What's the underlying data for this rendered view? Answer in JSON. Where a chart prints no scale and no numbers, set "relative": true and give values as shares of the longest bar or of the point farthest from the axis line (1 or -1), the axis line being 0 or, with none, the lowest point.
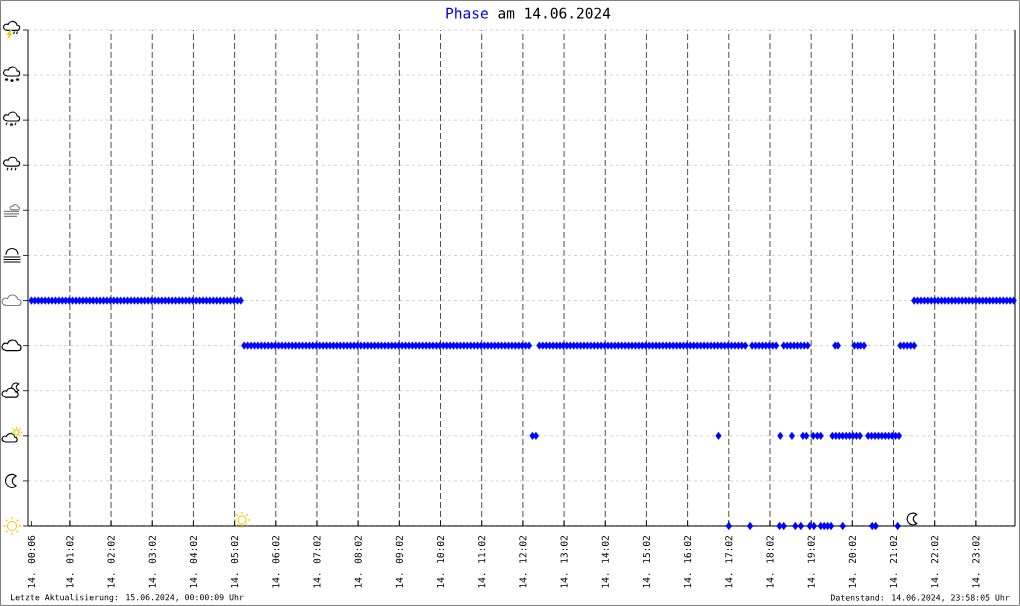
{
  "chart_data": {
    "type": "scatter",
    "title": "am 14.06.2024",
    "annotations": [
      "Letzte Aktualisierung: 15.06.2024, 00:00:09 Uhr",
      "Datenstand: 14.06.2024, 23:58:05 Uhr"
    ],
    "relative": true,
    "grid": true,
    "marker": "diamond",
    "xlim": [
      "2024-06-14T00:01",
      "2024-06-14T23:59"
    ],
    "xticks": [
      {
        "value": "2024-06-14T00:06",
        "label": "14. 00:06"
      },
      {
        "value": "2024-06-14T01:02",
        "label": "14. 01:02"
      },
      {
        "value": "2024-06-14T02:02",
        "label": "14. 02:02"
      },
      {
        "value": "2024-06-14T03:02",
        "label": "14. 03:02"
      },
      {
        "value": "2024-06-14T04:02",
        "label": "14. 04:02"
      },
      {
        "value": "2024-06-14T05:02",
        "label": "14. 05:02"
      },
      {
        "value": "2024-06-14T06:02",
        "label": "14. 06:02"
      },
      {
        "value": "2024-06-14T07:02",
        "label": "14. 07:02"
      },
      {
        "value": "2024-06-14T08:02",
        "label": "14. 08:02"
      },
      {
        "value": "2024-06-14T09:02",
        "label": "14. 09:02"
      },
      {
        "value": "2024-06-14T10:02",
        "label": "14. 10:02"
      },
      {
        "value": "2024-06-14T11:02",
        "label": "14. 11:02"
      },
      {
        "value": "2024-06-14T12:02",
        "label": "14. 12:02"
      },
      {
        "value": "2024-06-14T13:02",
        "label": "14. 13:02"
      },
      {
        "value": "2024-06-14T14:02",
        "label": "14. 14:02"
      },
      {
        "value": "2024-06-14T15:02",
        "label": "14. 15:02"
      },
      {
        "value": "2024-06-14T16:02",
        "label": "14. 16:02"
      },
      {
        "value": "2024-06-14T17:02",
        "label": "14. 17:02"
      },
      {
        "value": "2024-06-14T18:02",
        "label": "14. 18:02"
      },
      {
        "value": "2024-06-14T19:02",
        "label": "14. 19:02"
      },
      {
        "value": "2024-06-14T20:02",
        "label": "14. 20:02"
      },
      {
        "value": "2024-06-14T21:02",
        "label": "14. 21:02"
      },
      {
        "value": "2024-06-14T22:02",
        "label": "14. 22:02"
      },
      {
        "value": "2024-06-14T23:02",
        "label": "14. 23:02"
      }
    ],
    "series": [
      {
        "name": "Phase",
        "color": "#0000ff",
        "x": [
          "2024-06-14T00:06",
          "2024-06-14T00:11",
          "2024-06-14T00:16",
          "2024-06-14T00:21",
          "2024-06-14T00:26",
          "2024-06-14T00:31",
          "2024-06-14T00:36",
          "2024-06-14T00:41",
          "2024-06-14T00:46",
          "2024-06-14T00:51",
          "2024-06-14T00:56",
          "2024-06-14T01:01",
          "2024-06-14T01:06",
          "2024-06-14T01:11",
          "2024-06-14T01:16",
          "2024-06-14T01:21",
          "2024-06-14T01:26",
          "2024-06-14T01:31",
          "2024-06-14T01:36",
          "2024-06-14T01:41",
          "2024-06-14T01:46",
          "2024-06-14T01:51",
          "2024-06-14T01:56",
          "2024-06-14T02:01",
          "2024-06-14T02:06",
          "2024-06-14T02:11",
          "2024-06-14T02:16",
          "2024-06-14T02:21",
          "2024-06-14T02:26",
          "2024-06-14T02:31",
          "2024-06-14T02:36",
          "2024-06-14T02:41",
          "2024-06-14T02:46",
          "2024-06-14T02:51",
          "2024-06-14T02:56",
          "2024-06-14T03:01",
          "2024-06-14T03:06",
          "2024-06-14T03:11",
          "2024-06-14T03:16",
          "2024-06-14T03:21",
          "2024-06-14T03:26",
          "2024-06-14T03:31",
          "2024-06-14T03:36",
          "2024-06-14T03:41",
          "2024-06-14T03:46",
          "2024-06-14T03:51",
          "2024-06-14T03:56",
          "2024-06-14T04:01",
          "2024-06-14T04:06",
          "2024-06-14T04:11",
          "2024-06-14T04:16",
          "2024-06-14T04:21",
          "2024-06-14T04:26",
          "2024-06-14T04:31",
          "2024-06-14T04:36",
          "2024-06-14T04:41",
          "2024-06-14T04:46",
          "2024-06-14T04:51",
          "2024-06-14T04:56",
          "2024-06-14T05:01",
          "2024-06-14T05:06",
          "2024-06-14T05:11",
          "2024-06-14T05:16",
          "2024-06-14T05:21",
          "2024-06-14T05:26",
          "2024-06-14T05:31",
          "2024-06-14T05:36",
          "2024-06-14T05:41",
          "2024-06-14T05:46",
          "2024-06-14T05:51",
          "2024-06-14T05:56",
          "2024-06-14T06:01",
          "2024-06-14T06:06",
          "2024-06-14T06:11",
          "2024-06-14T06:16",
          "2024-06-14T06:21",
          "2024-06-14T06:26",
          "2024-06-14T06:31",
          "2024-06-14T06:36",
          "2024-06-14T06:41",
          "2024-06-14T06:46",
          "2024-06-14T06:51",
          "2024-06-14T06:56",
          "2024-06-14T07:01",
          "2024-06-14T07:06",
          "2024-06-14T07:11",
          "2024-06-14T07:16",
          "2024-06-14T07:21",
          "2024-06-14T07:26",
          "2024-06-14T07:31",
          "2024-06-14T07:36",
          "2024-06-14T07:41",
          "2024-06-14T07:46",
          "2024-06-14T07:51",
          "2024-06-14T07:56",
          "2024-06-14T08:01",
          "2024-06-14T08:06",
          "2024-06-14T08:11",
          "2024-06-14T08:16",
          "2024-06-14T08:21",
          "2024-06-14T08:26",
          "2024-06-14T08:31",
          "2024-06-14T08:36",
          "2024-06-14T08:41",
          "2024-06-14T08:46",
          "2024-06-14T08:51",
          "2024-06-14T08:56",
          "2024-06-14T09:01",
          "2024-06-14T09:06",
          "2024-06-14T09:11",
          "2024-06-14T09:16",
          "2024-06-14T09:21",
          "2024-06-14T09:26",
          "2024-06-14T09:31",
          "2024-06-14T09:36",
          "2024-06-14T09:41",
          "2024-06-14T09:46",
          "2024-06-14T09:51",
          "2024-06-14T09:56",
          "2024-06-14T10:01",
          "2024-06-14T10:06",
          "2024-06-14T10:11",
          "2024-06-14T10:16",
          "2024-06-14T10:21",
          "2024-06-14T10:26",
          "2024-06-14T10:31",
          "2024-06-14T10:36",
          "2024-06-14T10:41",
          "2024-06-14T10:46",
          "2024-06-14T10:51",
          "2024-06-14T10:56",
          "2024-06-14T11:01",
          "2024-06-14T11:06",
          "2024-06-14T11:11",
          "2024-06-14T11:16",
          "2024-06-14T11:21",
          "2024-06-14T11:26",
          "2024-06-14T11:31",
          "2024-06-14T11:36",
          "2024-06-14T11:41",
          "2024-06-14T11:46",
          "2024-06-14T11:51",
          "2024-06-14T11:56",
          "2024-06-14T12:01",
          "2024-06-14T12:06",
          "2024-06-14T12:11",
          "2024-06-14T12:26",
          "2024-06-14T12:31",
          "2024-06-14T12:36",
          "2024-06-14T12:41",
          "2024-06-14T12:46",
          "2024-06-14T12:51",
          "2024-06-14T12:56",
          "2024-06-14T13:01",
          "2024-06-14T13:06",
          "2024-06-14T13:11",
          "2024-06-14T13:16",
          "2024-06-14T13:21",
          "2024-06-14T13:26",
          "2024-06-14T13:31",
          "2024-06-14T13:36",
          "2024-06-14T13:41",
          "2024-06-14T13:46",
          "2024-06-14T13:51",
          "2024-06-14T13:56",
          "2024-06-14T14:01",
          "2024-06-14T14:06",
          "2024-06-14T14:11",
          "2024-06-14T14:16",
          "2024-06-14T14:21",
          "2024-06-14T14:26",
          "2024-06-14T14:31",
          "2024-06-14T14:36",
          "2024-06-14T14:41",
          "2024-06-14T14:46",
          "2024-06-14T14:51",
          "2024-06-14T14:56",
          "2024-06-14T15:01",
          "2024-06-14T15:06",
          "2024-06-14T15:11",
          "2024-06-14T15:16",
          "2024-06-14T15:21",
          "2024-06-14T15:26",
          "2024-06-14T15:31",
          "2024-06-14T15:36",
          "2024-06-14T15:41",
          "2024-06-14T15:46",
          "2024-06-14T15:51",
          "2024-06-14T15:56",
          "2024-06-14T16:01",
          "2024-06-14T16:06",
          "2024-06-14T16:11",
          "2024-06-14T16:16",
          "2024-06-14T16:21",
          "2024-06-14T16:26",
          "2024-06-14T16:31",
          "2024-06-14T16:36",
          "2024-06-14T16:41",
          "2024-06-14T16:46",
          "2024-06-14T16:51",
          "2024-06-14T16:56",
          "2024-06-14T17:01",
          "2024-06-14T17:06",
          "2024-06-14T17:11",
          "2024-06-14T17:16",
          "2024-06-14T17:21",
          "2024-06-14T17:26",
          "2024-06-14T17:36",
          "2024-06-14T17:41",
          "2024-06-14T17:46",
          "2024-06-14T17:51",
          "2024-06-14T17:56",
          "2024-06-14T18:01",
          "2024-06-14T18:06",
          "2024-06-14T18:11",
          "2024-06-14T18:22",
          "2024-06-14T18:27",
          "2024-06-14T18:32",
          "2024-06-14T18:37",
          "2024-06-14T18:42",
          "2024-06-14T18:47",
          "2024-06-14T18:52",
          "2024-06-14T18:57",
          "2024-06-14T19:37",
          "2024-06-14T19:41",
          "2024-06-14T20:05",
          "2024-06-14T20:10",
          "2024-06-14T20:14",
          "2024-06-14T20:19",
          "2024-06-14T21:12",
          "2024-06-14T21:17",
          "2024-06-14T21:22",
          "2024-06-14T21:27",
          "2024-06-14T21:32",
          "2024-06-14T21:32",
          "2024-06-14T21:37",
          "2024-06-14T21:42",
          "2024-06-14T21:47",
          "2024-06-14T21:52",
          "2024-06-14T21:57",
          "2024-06-14T22:02",
          "2024-06-14T22:07",
          "2024-06-14T22:12",
          "2024-06-14T22:17",
          "2024-06-14T22:22",
          "2024-06-14T22:27",
          "2024-06-14T22:32",
          "2024-06-14T22:37",
          "2024-06-14T22:42",
          "2024-06-14T22:47",
          "2024-06-14T22:52",
          "2024-06-14T22:57",
          "2024-06-14T23:02",
          "2024-06-14T23:07",
          "2024-06-14T23:12",
          "2024-06-14T23:17",
          "2024-06-14T23:22",
          "2024-06-14T23:27",
          "2024-06-14T23:32",
          "2024-06-14T23:37",
          "2024-06-14T23:42",
          "2024-06-14T23:47",
          "2024-06-14T23:52",
          "2024-06-14T23:57",
          "2024-06-14T12:16",
          "2024-06-14T12:21",
          "2024-06-14T16:47",
          "2024-06-14T18:17",
          "2024-06-14T18:34",
          "2024-06-14T18:50",
          "2024-06-14T18:55",
          "2024-06-14T19:05",
          "2024-06-14T19:11",
          "2024-06-14T19:16",
          "2024-06-14T19:33",
          "2024-06-14T19:38",
          "2024-06-14T19:43",
          "2024-06-14T19:48",
          "2024-06-14T19:53",
          "2024-06-14T19:58",
          "2024-06-14T20:03",
          "2024-06-14T20:08",
          "2024-06-14T20:13",
          "2024-06-14T20:25",
          "2024-06-14T20:30",
          "2024-06-14T20:35",
          "2024-06-14T20:40",
          "2024-06-14T20:45",
          "2024-06-14T20:50",
          "2024-06-14T20:55",
          "2024-06-14T21:00",
          "2024-06-14T21:05",
          "2024-06-14T21:10",
          "2024-06-14T17:02",
          "2024-06-14T17:33",
          "2024-06-14T18:16",
          "2024-06-14T18:22",
          "2024-06-14T18:39",
          "2024-06-14T18:47",
          "2024-06-14T19:00",
          "2024-06-14T19:06",
          "2024-06-14T19:16",
          "2024-06-14T19:21",
          "2024-06-14T19:26",
          "2024-06-14T19:31",
          "2024-06-14T19:48",
          "2024-06-14T20:31",
          "2024-06-14T20:36",
          "2024-06-14T21:08"
        ],
        "values": [
          1,
          1,
          1,
          1,
          1,
          1,
          1,
          1,
          1,
          1,
          1,
          1,
          1,
          1,
          1,
          1,
          1,
          1,
          1,
          1,
          1,
          1,
          1,
          1,
          1,
          1,
          1,
          1,
          1,
          1,
          1,
          1,
          1,
          1,
          1,
          1,
          1,
          1,
          1,
          1,
          1,
          1,
          1,
          1,
          1,
          1,
          1,
          1,
          1,
          1,
          1,
          1,
          1,
          1,
          1,
          1,
          1,
          1,
          1,
          1,
          1,
          1,
          0.8,
          0.8,
          0.8,
          0.8,
          0.8,
          0.8,
          0.8,
          0.8,
          0.8,
          0.8,
          0.8,
          0.8,
          0.8,
          0.8,
          0.8,
          0.8,
          0.8,
          0.8,
          0.8,
          0.8,
          0.8,
          0.8,
          0.8,
          0.8,
          0.8,
          0.8,
          0.8,
          0.8,
          0.8,
          0.8,
          0.8,
          0.8,
          0.8,
          0.8,
          0.8,
          0.8,
          0.8,
          0.8,
          0.8,
          0.8,
          0.8,
          0.8,
          0.8,
          0.8,
          0.8,
          0.8,
          0.8,
          0.8,
          0.8,
          0.8,
          0.8,
          0.8,
          0.8,
          0.8,
          0.8,
          0.8,
          0.8,
          0.8,
          0.8,
          0.8,
          0.8,
          0.8,
          0.8,
          0.8,
          0.8,
          0.8,
          0.8,
          0.8,
          0.8,
          0.8,
          0.8,
          0.8,
          0.8,
          0.8,
          0.8,
          0.8,
          0.8,
          0.8,
          0.8,
          0.8,
          0.8,
          0.8,
          0.8,
          0.8,
          0.8,
          0.8,
          0.8,
          0.8,
          0.8,
          0.8,
          0.8,
          0.8,
          0.8,
          0.8,
          0.8,
          0.8,
          0.8,
          0.8,
          0.8,
          0.8,
          0.8,
          0.8,
          0.8,
          0.8,
          0.8,
          0.8,
          0.8,
          0.8,
          0.8,
          0.8,
          0.8,
          0.8,
          0.8,
          0.8,
          0.8,
          0.8,
          0.8,
          0.8,
          0.8,
          0.8,
          0.8,
          0.8,
          0.8,
          0.8,
          0.8,
          0.8,
          0.8,
          0.8,
          0.8,
          0.8,
          0.8,
          0.8,
          0.8,
          0.8,
          0.8,
          0.8,
          0.8,
          0.8,
          0.8,
          0.8,
          0.8,
          0.8,
          0.8,
          0.8,
          0.8,
          0.8,
          0.8,
          0.8,
          0.8,
          0.8,
          0.8,
          0.8,
          0.8,
          0.8,
          0.8,
          0.8,
          0.8,
          0.8,
          0.8,
          0.8,
          0.8,
          0.8,
          0.8,
          0.8,
          0.8,
          0.8,
          0.8,
          0.8,
          0.8,
          0.8,
          0.8,
          0.8,
          1,
          1,
          1,
          1,
          1,
          1,
          1,
          1,
          1,
          1,
          1,
          1,
          1,
          1,
          1,
          1,
          1,
          1,
          1,
          1,
          1,
          1,
          1,
          1,
          1,
          1,
          1,
          1,
          1,
          1,
          0.4,
          0.4,
          0.4,
          0.4,
          0.4,
          0.4,
          0.4,
          0.4,
          0.4,
          0.4,
          0.4,
          0.4,
          0.4,
          0.4,
          0.4,
          0.4,
          0.4,
          0.4,
          0.4,
          0.4,
          0.4,
          0.4,
          0.4,
          0.4,
          0.4,
          0.4,
          0.4,
          0.4,
          0.4,
          0,
          0,
          0,
          0,
          0,
          0,
          0,
          0,
          0,
          0,
          0,
          0,
          0,
          0,
          0,
          0
        ]
      }
    ]
  }
}
